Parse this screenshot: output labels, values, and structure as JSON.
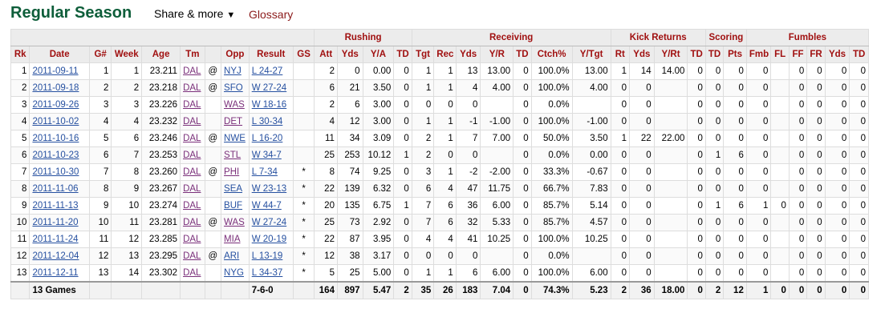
{
  "title": "Regular Season",
  "share_label": "Share & more",
  "glossary_label": "Glossary",
  "groups": {
    "rushing": "Rushing",
    "receiving": "Receiving",
    "kick_returns": "Kick Returns",
    "scoring": "Scoring",
    "fumbles": "Fumbles"
  },
  "columns": [
    "Rk",
    "Date",
    "G#",
    "Week",
    "Age",
    "Tm",
    "",
    "Opp",
    "Result",
    "GS",
    "Att",
    "Yds",
    "Y/A",
    "TD",
    "Tgt",
    "Rec",
    "Yds",
    "Y/R",
    "TD",
    "Ctch%",
    "Y/Tgt",
    "Rt",
    "Yds",
    "Y/Rt",
    "TD",
    "TD",
    "Pts",
    "Fmb",
    "FL",
    "FF",
    "FR",
    "Yds",
    "TD"
  ],
  "rows": [
    [
      "1",
      "2011-09-11",
      "1",
      "1",
      "23.211",
      "DAL",
      "@",
      "NYJ",
      "L 24-27",
      "",
      "2",
      "0",
      "0.00",
      "0",
      "1",
      "1",
      "13",
      "13.00",
      "0",
      "100.0%",
      "13.00",
      "1",
      "14",
      "14.00",
      "0",
      "0",
      "0",
      "0",
      "",
      "0",
      "0",
      "0",
      "0"
    ],
    [
      "2",
      "2011-09-18",
      "2",
      "2",
      "23.218",
      "DAL",
      "@",
      "SFO",
      "W 27-24",
      "",
      "6",
      "21",
      "3.50",
      "0",
      "1",
      "1",
      "4",
      "4.00",
      "0",
      "100.0%",
      "4.00",
      "0",
      "0",
      "",
      "0",
      "0",
      "0",
      "0",
      "",
      "0",
      "0",
      "0",
      "0"
    ],
    [
      "3",
      "2011-09-26",
      "3",
      "3",
      "23.226",
      "DAL",
      "",
      "WAS",
      "W 18-16",
      "",
      "2",
      "6",
      "3.00",
      "0",
      "0",
      "0",
      "0",
      "",
      "0",
      "0.0%",
      "",
      "0",
      "0",
      "",
      "0",
      "0",
      "0",
      "0",
      "",
      "0",
      "0",
      "0",
      "0"
    ],
    [
      "4",
      "2011-10-02",
      "4",
      "4",
      "23.232",
      "DAL",
      "",
      "DET",
      "L 30-34",
      "",
      "4",
      "12",
      "3.00",
      "0",
      "1",
      "1",
      "-1",
      "-1.00",
      "0",
      "100.0%",
      "-1.00",
      "0",
      "0",
      "",
      "0",
      "0",
      "0",
      "0",
      "",
      "0",
      "0",
      "0",
      "0"
    ],
    [
      "5",
      "2011-10-16",
      "5",
      "6",
      "23.246",
      "DAL",
      "@",
      "NWE",
      "L 16-20",
      "",
      "11",
      "34",
      "3.09",
      "0",
      "2",
      "1",
      "7",
      "7.00",
      "0",
      "50.0%",
      "3.50",
      "1",
      "22",
      "22.00",
      "0",
      "0",
      "0",
      "0",
      "",
      "0",
      "0",
      "0",
      "0"
    ],
    [
      "6",
      "2011-10-23",
      "6",
      "7",
      "23.253",
      "DAL",
      "",
      "STL",
      "W 34-7",
      "",
      "25",
      "253",
      "10.12",
      "1",
      "2",
      "0",
      "0",
      "",
      "0",
      "0.0%",
      "0.00",
      "0",
      "0",
      "",
      "0",
      "1",
      "6",
      "0",
      "",
      "0",
      "0",
      "0",
      "0"
    ],
    [
      "7",
      "2011-10-30",
      "7",
      "8",
      "23.260",
      "DAL",
      "@",
      "PHI",
      "L 7-34",
      "*",
      "8",
      "74",
      "9.25",
      "0",
      "3",
      "1",
      "-2",
      "-2.00",
      "0",
      "33.3%",
      "-0.67",
      "0",
      "0",
      "",
      "0",
      "0",
      "0",
      "0",
      "",
      "0",
      "0",
      "0",
      "0"
    ],
    [
      "8",
      "2011-11-06",
      "8",
      "9",
      "23.267",
      "DAL",
      "",
      "SEA",
      "W 23-13",
      "*",
      "22",
      "139",
      "6.32",
      "0",
      "6",
      "4",
      "47",
      "11.75",
      "0",
      "66.7%",
      "7.83",
      "0",
      "0",
      "",
      "0",
      "0",
      "0",
      "0",
      "",
      "0",
      "0",
      "0",
      "0"
    ],
    [
      "9",
      "2011-11-13",
      "9",
      "10",
      "23.274",
      "DAL",
      "",
      "BUF",
      "W 44-7",
      "*",
      "20",
      "135",
      "6.75",
      "1",
      "7",
      "6",
      "36",
      "6.00",
      "0",
      "85.7%",
      "5.14",
      "0",
      "0",
      "",
      "0",
      "1",
      "6",
      "1",
      "0",
      "0",
      "0",
      "0",
      "0"
    ],
    [
      "10",
      "2011-11-20",
      "10",
      "11",
      "23.281",
      "DAL",
      "@",
      "WAS",
      "W 27-24",
      "*",
      "25",
      "73",
      "2.92",
      "0",
      "7",
      "6",
      "32",
      "5.33",
      "0",
      "85.7%",
      "4.57",
      "0",
      "0",
      "",
      "0",
      "0",
      "0",
      "0",
      "",
      "0",
      "0",
      "0",
      "0"
    ],
    [
      "11",
      "2011-11-24",
      "11",
      "12",
      "23.285",
      "DAL",
      "",
      "MIA",
      "W 20-19",
      "*",
      "22",
      "87",
      "3.95",
      "0",
      "4",
      "4",
      "41",
      "10.25",
      "0",
      "100.0%",
      "10.25",
      "0",
      "0",
      "",
      "0",
      "0",
      "0",
      "0",
      "",
      "0",
      "0",
      "0",
      "0"
    ],
    [
      "12",
      "2011-12-04",
      "12",
      "13",
      "23.295",
      "DAL",
      "@",
      "ARI",
      "L 13-19",
      "*",
      "12",
      "38",
      "3.17",
      "0",
      "0",
      "0",
      "0",
      "",
      "0",
      "0.0%",
      "",
      "0",
      "0",
      "",
      "0",
      "0",
      "0",
      "0",
      "",
      "0",
      "0",
      "0",
      "0"
    ],
    [
      "13",
      "2011-12-11",
      "13",
      "14",
      "23.302",
      "DAL",
      "",
      "NYG",
      "L 34-37",
      "*",
      "5",
      "25",
      "5.00",
      "0",
      "1",
      "1",
      "6",
      "6.00",
      "0",
      "100.0%",
      "6.00",
      "0",
      "0",
      "",
      "0",
      "0",
      "0",
      "0",
      "",
      "0",
      "0",
      "0",
      "0"
    ]
  ],
  "totals": [
    "",
    "13 Games",
    "",
    "",
    "",
    "",
    "",
    "",
    "7-6-0",
    "",
    "164",
    "897",
    "5.47",
    "2",
    "35",
    "26",
    "183",
    "7.04",
    "0",
    "74.3%",
    "5.23",
    "2",
    "36",
    "18.00",
    "0",
    "2",
    "12",
    "1",
    "0",
    "0",
    "0",
    "0",
    "0"
  ]
}
